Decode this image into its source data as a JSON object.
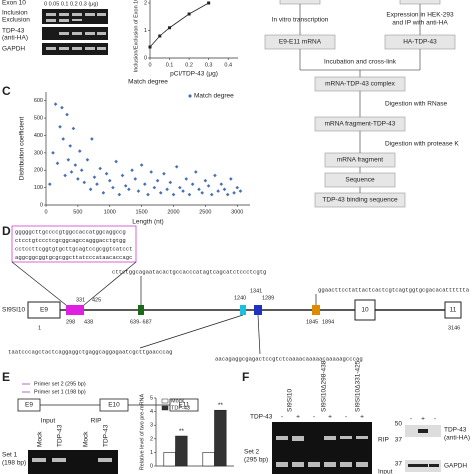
{
  "panel_labels": [
    "C",
    "D",
    "E",
    "F"
  ],
  "panel_a": {
    "exon": "Exon 10",
    "doses": "0  0.05  0.1  0.2  0.3 (μg)",
    "gel_labels": [
      "Inclusion",
      "Exclusion",
      "TDP-43",
      "(anti-HA)",
      "GAPDH"
    ]
  },
  "flowchart": {
    "steps": [
      "In vitro transcription",
      "Expression in HEK-293",
      "and IP with anti-HA",
      "E9-E11 mRNA",
      "HA-TDP-43",
      "Incubation and cross-link",
      "mRNA-TDP-43 complex",
      "Digestion with RNase",
      "mRNA fragment-TDP-43",
      "Digestion with protease K",
      "mRNA fragment",
      "Sequence",
      "TDP-43 binding sequence"
    ]
  },
  "panel_d": {
    "box_sequences": [
      "gggggcttgccccgtggccaccatggcaggccg",
      "ctcctgtccctcgcggcagccagggacctgtgg",
      "cctccttcggtgtgcttgcagtccgcggtcatcct",
      "aggcggcggtgcgcggcttatcccataacaccagc"
    ],
    "green_sequence": "cttctggcagaatacactgccacccatagtcagcatctccctcgtg",
    "orange_sequence": "ggaacttcctattactcactcgtcagtggtgcgacacatttttta",
    "cyan_sequence": "taatcccagctactcaggaggctgaggcaggagaatcgcttgaacccag",
    "blue_sequence": "aacagaggcgagactccgtctcaaaacaaaaacaaaaagcccag",
    "construct": "SI9SI10",
    "exons": [
      "E9",
      "10",
      "11"
    ],
    "positions": [
      "1",
      "298",
      "331",
      "425",
      "438",
      "639- 687",
      "1240",
      "1341",
      "1289",
      "1845",
      "1894",
      "3146"
    ]
  },
  "panel_e": {
    "primers": [
      "Primer set 2 (295 bp)",
      "Primer set 1 (198 bp)"
    ],
    "exons": [
      "E9",
      "E10",
      "E11"
    ],
    "groups": [
      "Input",
      "RIP"
    ],
    "lanes": [
      "Mock",
      "TDP-43",
      "Mock",
      "TDP-43"
    ],
    "set": [
      "Set 1",
      "(198 bp)"
    ]
  },
  "panel_f": {
    "samples": [
      "SI9SI10",
      "SI9SI10Δ298-438",
      "SI9SI10Δ331-425"
    ],
    "tdp": "TDP-43",
    "signs": [
      "-",
      "+",
      "-",
      "+",
      "-",
      "+"
    ],
    "rows": [
      "RIP",
      "Input"
    ],
    "set": [
      "Set 2",
      "(295 bp)"
    ],
    "blot": [
      "TDP-43",
      "(anti-HA)",
      "GAPDH"
    ],
    "markers": [
      "50",
      "37",
      "37"
    ],
    "blot_signs": [
      "-",
      "+",
      "-"
    ]
  },
  "chart_data": [
    {
      "type": "line",
      "x": [
        0,
        0.05,
        0.1,
        0.2,
        0.3
      ],
      "values": [
        0.4,
        0.8,
        1.1,
        1.6,
        2.0
      ],
      "color": "#222",
      "xlabel": "pCI/TDP-43 (μg)",
      "ylabel": "Inclusion/Exclusion of Exon 10",
      "xlim": [
        0,
        0.45
      ],
      "xticks": [
        0,
        0.1,
        0.2,
        0.3,
        0.4
      ],
      "ylim": [
        0,
        2.4
      ],
      "yticks": [
        0,
        1,
        2
      ]
    },
    {
      "type": "scatter",
      "title": "Match degree",
      "xlabel": "Length (nt)",
      "ylabel": "Distribution coefficient",
      "series": [
        {
          "name": "Match degree",
          "color": "#4a6fb5",
          "x": [
            60,
            110,
            150,
            180,
            220,
            250,
            270,
            300,
            330,
            350,
            380,
            400,
            430,
            460,
            500,
            530,
            560,
            600,
            650,
            700,
            720,
            760,
            800,
            850,
            900,
            950,
            1000,
            1050,
            1100,
            1150,
            1200,
            1250,
            1300,
            1350,
            1400,
            1450,
            1500,
            1550,
            1600,
            1650,
            1700,
            1750,
            1800,
            1850,
            1900,
            1950,
            2000,
            2050,
            2100,
            2150,
            2200,
            2250,
            2300,
            2350,
            2400,
            2450,
            2500,
            2550,
            2600,
            2650,
            2700,
            2750,
            2800,
            2850,
            2900,
            2950,
            3000,
            3050
          ],
          "values": [
            120,
            300,
            580,
            240,
            450,
            560,
            380,
            170,
            520,
            260,
            340,
            190,
            440,
            230,
            150,
            310,
            200,
            130,
            260,
            90,
            380,
            160,
            120,
            210,
            70,
            180,
            140,
            100,
            250,
            60,
            170,
            110,
            90,
            200,
            150,
            80,
            230,
            120,
            60,
            190,
            100,
            140,
            70,
            180,
            90,
            130,
            60,
            220,
            100,
            80,
            150,
            60,
            120,
            190,
            90,
            70,
            140,
            110,
            60,
            170,
            80,
            120,
            90,
            60,
            150,
            70,
            100,
            80
          ]
        }
      ],
      "xlim": [
        0,
        3200
      ],
      "xticks": [
        0,
        500,
        1000,
        1500,
        2000,
        2500,
        3000
      ],
      "ylim": [
        0,
        650
      ],
      "yticks": [
        0,
        100,
        200,
        300,
        400,
        500,
        600
      ],
      "legend": "top-right"
    },
    {
      "type": "bar",
      "ylabel": "Relative level of two pre-mRNA",
      "categories": [
        null,
        null
      ],
      "series": [
        {
          "name": "Mock",
          "color": "#ffffff",
          "values": [
            1,
            1
          ]
        },
        {
          "name": "TDP-43",
          "color": "#333333",
          "values": [
            2.2,
            4.1
          ]
        }
      ],
      "annotations": [
        "**",
        "**"
      ],
      "ylim": [
        0,
        5
      ],
      "yticks": [
        0,
        1,
        2,
        3,
        4,
        5
      ]
    }
  ]
}
